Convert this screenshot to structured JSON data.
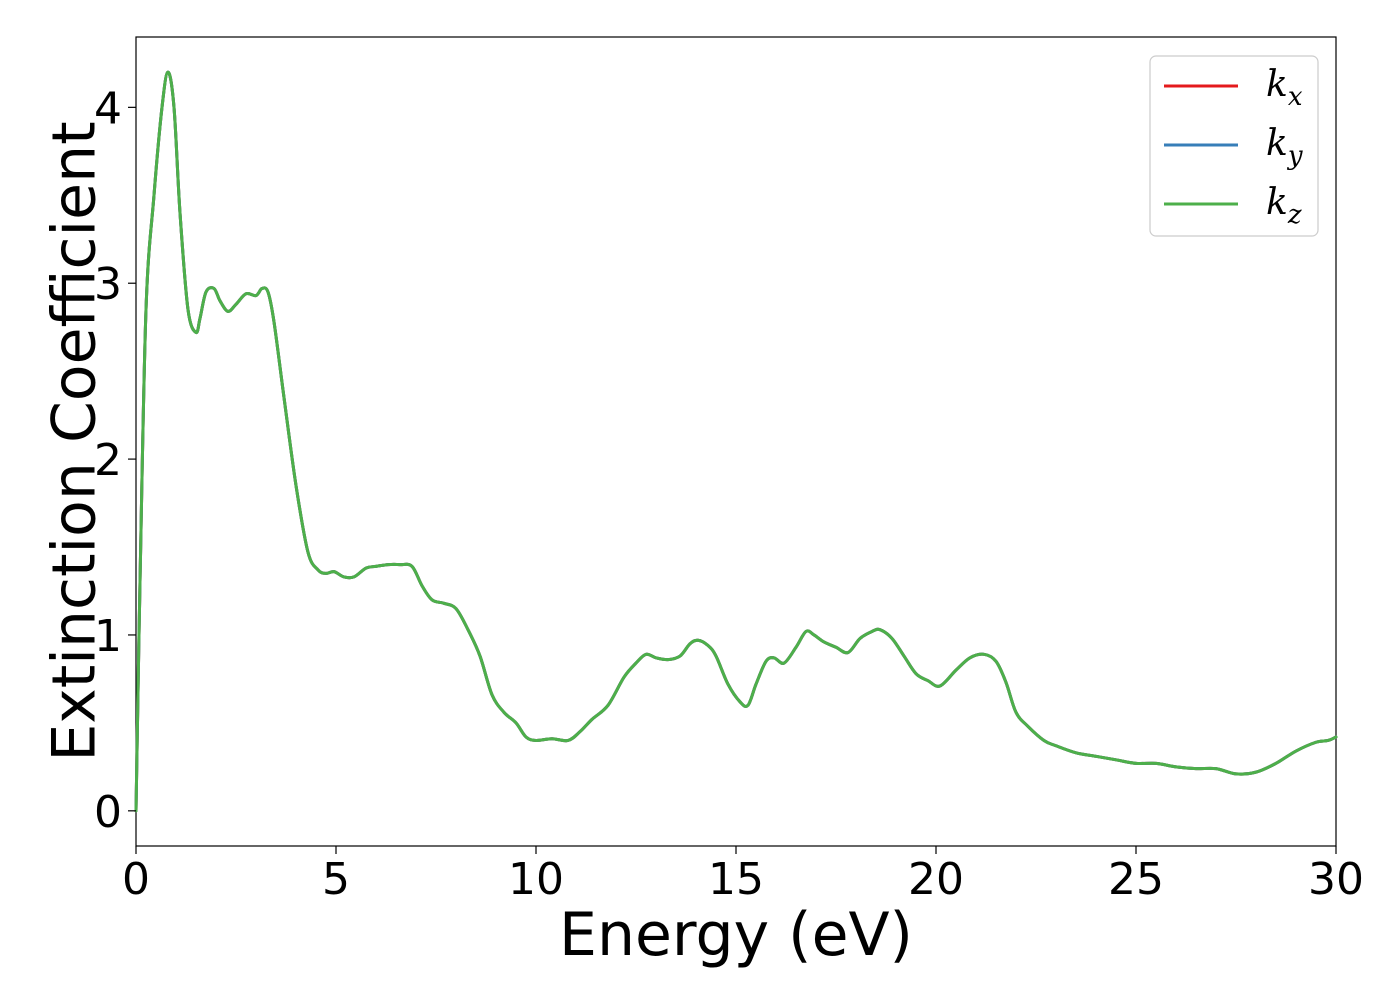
{
  "chart_data": {
    "type": "line",
    "title": "",
    "xlabel": "Energy (eV)",
    "ylabel": "Extinction Coefficient",
    "xlim": [
      0,
      30
    ],
    "ylim": [
      -0.2,
      4.4
    ],
    "xticks": [
      0,
      5,
      10,
      15,
      20,
      25,
      30
    ],
    "yticks": [
      0,
      1,
      2,
      3,
      4
    ],
    "grid": false,
    "legend_position": "top-right",
    "legend": [
      {
        "base": "k",
        "sub": "x",
        "color": "#e41a1c"
      },
      {
        "base": "k",
        "sub": "y",
        "color": "#377eb8"
      },
      {
        "base": "k",
        "sub": "z",
        "color": "#4daf4a"
      }
    ],
    "x": [
      0,
      0.1,
      0.25,
      0.45,
      0.65,
      0.8,
      0.95,
      1.1,
      1.3,
      1.5,
      1.6,
      1.75,
      1.95,
      2.1,
      2.3,
      2.5,
      2.75,
      3.0,
      3.15,
      3.3,
      3.45,
      3.7,
      4.0,
      4.3,
      4.55,
      4.75,
      4.95,
      5.2,
      5.45,
      5.75,
      6.0,
      6.3,
      6.6,
      6.9,
      7.15,
      7.4,
      7.7,
      8.0,
      8.3,
      8.6,
      8.9,
      9.2,
      9.5,
      9.75,
      10.0,
      10.4,
      10.8,
      11.1,
      11.4,
      11.8,
      12.2,
      12.5,
      12.75,
      13.0,
      13.3,
      13.6,
      13.85,
      14.05,
      14.3,
      14.5,
      14.8,
      15.1,
      15.3,
      15.5,
      15.75,
      15.95,
      16.2,
      16.5,
      16.75,
      16.95,
      17.2,
      17.5,
      17.8,
      18.1,
      18.4,
      18.6,
      18.9,
      19.2,
      19.5,
      19.8,
      20.1,
      20.5,
      20.85,
      21.2,
      21.5,
      21.75,
      22.0,
      22.3,
      22.7,
      23.0,
      23.5,
      24.0,
      24.5,
      25.0,
      25.5,
      26.0,
      26.5,
      27.0,
      27.5,
      28.0,
      28.5,
      29.0,
      29.5,
      29.8,
      30.0
    ],
    "series": [
      {
        "name": "k_x",
        "color": "#e41a1c",
        "values": [
          0.0,
          1.3,
          2.85,
          3.5,
          4.0,
          4.2,
          4.0,
          3.4,
          2.85,
          2.72,
          2.8,
          2.95,
          2.97,
          2.9,
          2.84,
          2.88,
          2.94,
          2.93,
          2.97,
          2.95,
          2.78,
          2.35,
          1.85,
          1.47,
          1.37,
          1.35,
          1.36,
          1.33,
          1.33,
          1.38,
          1.39,
          1.4,
          1.4,
          1.39,
          1.28,
          1.2,
          1.18,
          1.15,
          1.03,
          0.88,
          0.66,
          0.56,
          0.5,
          0.42,
          0.4,
          0.41,
          0.4,
          0.45,
          0.52,
          0.6,
          0.76,
          0.84,
          0.89,
          0.87,
          0.86,
          0.88,
          0.95,
          0.97,
          0.94,
          0.88,
          0.72,
          0.62,
          0.6,
          0.72,
          0.85,
          0.87,
          0.84,
          0.93,
          1.02,
          1.0,
          0.96,
          0.93,
          0.9,
          0.98,
          1.02,
          1.03,
          0.98,
          0.88,
          0.78,
          0.74,
          0.71,
          0.8,
          0.87,
          0.89,
          0.85,
          0.73,
          0.56,
          0.48,
          0.4,
          0.37,
          0.33,
          0.31,
          0.29,
          0.27,
          0.27,
          0.25,
          0.24,
          0.24,
          0.21,
          0.22,
          0.27,
          0.34,
          0.39,
          0.4,
          0.42
        ]
      },
      {
        "name": "k_y",
        "color": "#377eb8",
        "values": [
          0.0,
          1.3,
          2.85,
          3.5,
          4.0,
          4.2,
          4.0,
          3.4,
          2.85,
          2.72,
          2.8,
          2.95,
          2.97,
          2.9,
          2.84,
          2.88,
          2.94,
          2.93,
          2.97,
          2.95,
          2.78,
          2.35,
          1.85,
          1.47,
          1.37,
          1.35,
          1.36,
          1.33,
          1.33,
          1.38,
          1.39,
          1.4,
          1.4,
          1.39,
          1.28,
          1.2,
          1.18,
          1.15,
          1.03,
          0.88,
          0.66,
          0.56,
          0.5,
          0.42,
          0.4,
          0.41,
          0.4,
          0.45,
          0.52,
          0.6,
          0.76,
          0.84,
          0.89,
          0.87,
          0.86,
          0.88,
          0.95,
          0.97,
          0.94,
          0.88,
          0.72,
          0.62,
          0.6,
          0.72,
          0.85,
          0.87,
          0.84,
          0.93,
          1.02,
          1.0,
          0.96,
          0.93,
          0.9,
          0.98,
          1.02,
          1.03,
          0.98,
          0.88,
          0.78,
          0.74,
          0.71,
          0.8,
          0.87,
          0.89,
          0.85,
          0.73,
          0.56,
          0.48,
          0.4,
          0.37,
          0.33,
          0.31,
          0.29,
          0.27,
          0.27,
          0.25,
          0.24,
          0.24,
          0.21,
          0.22,
          0.27,
          0.34,
          0.39,
          0.4,
          0.42
        ]
      },
      {
        "name": "k_z",
        "color": "#4daf4a",
        "values": [
          0.0,
          1.3,
          2.85,
          3.5,
          4.0,
          4.2,
          4.0,
          3.4,
          2.85,
          2.72,
          2.8,
          2.95,
          2.97,
          2.9,
          2.84,
          2.88,
          2.94,
          2.93,
          2.97,
          2.95,
          2.78,
          2.35,
          1.85,
          1.47,
          1.37,
          1.35,
          1.36,
          1.33,
          1.33,
          1.38,
          1.39,
          1.4,
          1.4,
          1.39,
          1.28,
          1.2,
          1.18,
          1.15,
          1.03,
          0.88,
          0.66,
          0.56,
          0.5,
          0.42,
          0.4,
          0.41,
          0.4,
          0.45,
          0.52,
          0.6,
          0.76,
          0.84,
          0.89,
          0.87,
          0.86,
          0.88,
          0.95,
          0.97,
          0.94,
          0.88,
          0.72,
          0.62,
          0.6,
          0.72,
          0.85,
          0.87,
          0.84,
          0.93,
          1.02,
          1.0,
          0.96,
          0.93,
          0.9,
          0.98,
          1.02,
          1.03,
          0.98,
          0.88,
          0.78,
          0.74,
          0.71,
          0.8,
          0.87,
          0.89,
          0.85,
          0.73,
          0.56,
          0.48,
          0.4,
          0.37,
          0.33,
          0.31,
          0.29,
          0.27,
          0.27,
          0.25,
          0.24,
          0.24,
          0.21,
          0.22,
          0.27,
          0.34,
          0.39,
          0.4,
          0.42
        ]
      }
    ]
  }
}
